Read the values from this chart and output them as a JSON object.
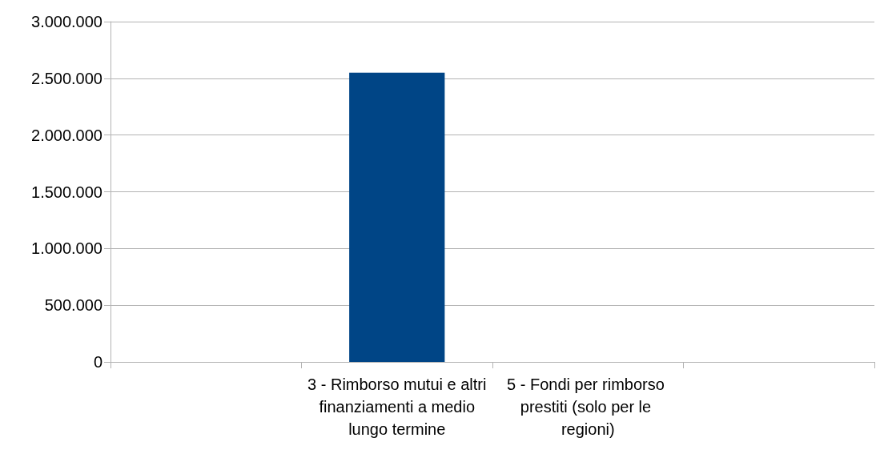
{
  "chart_data": {
    "type": "bar",
    "categories": [
      null,
      "3 - Rimborso mutui e altri finanziamenti a medio lungo termine",
      "5 - Fondi per rimborso prestiti (solo per le regioni)",
      null
    ],
    "values": [
      null,
      2550000,
      0,
      null
    ],
    "color": "#004586",
    "ylim": [
      0,
      3000000
    ],
    "yticks": [
      {
        "value": 0,
        "label": "0"
      },
      {
        "value": 500000,
        "label": "500.000"
      },
      {
        "value": 1000000,
        "label": "1.000.000"
      },
      {
        "value": 1500000,
        "label": "1.500.000"
      },
      {
        "value": 2000000,
        "label": "2.000.000"
      },
      {
        "value": 2500000,
        "label": "2.500.000"
      },
      {
        "value": 3000000,
        "label": "3.000.000"
      }
    ],
    "grid": "y"
  }
}
